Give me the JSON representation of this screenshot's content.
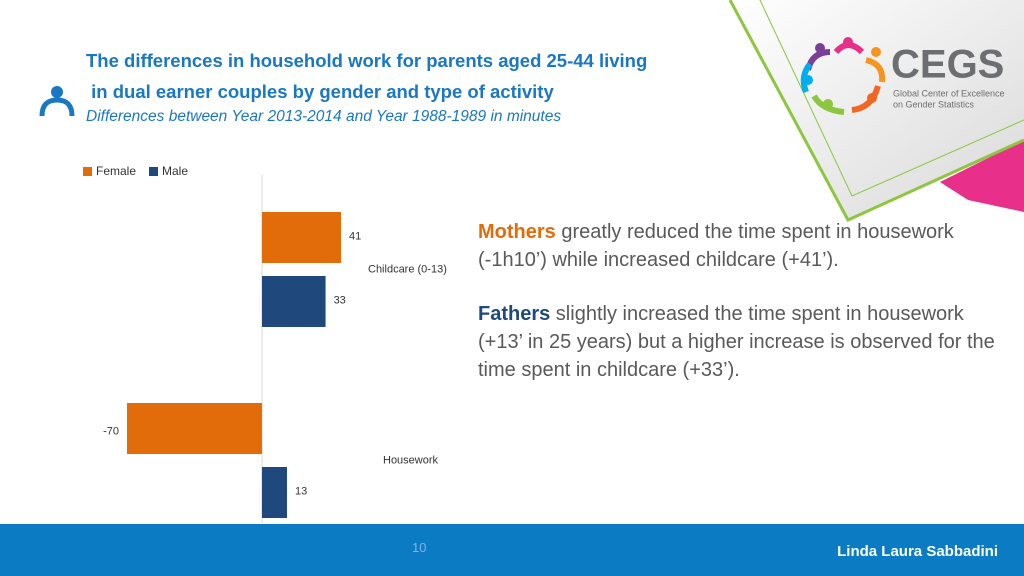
{
  "header": {
    "title_line1": "The differences in household work for parents aged 25-44 living",
    "title_line2": " in dual earner couples by gender and type of activity",
    "subtitle": "Differences between Year 2013-2014 and Year 1988-1989 in minutes"
  },
  "logo": {
    "name": "CEGS",
    "tagline_1": "Global Center of Excellence",
    "tagline_2": "on Gender Statistics"
  },
  "chart_data": {
    "type": "bar",
    "orientation": "horizontal",
    "categories": [
      "Childcare (0-13)",
      "Housework"
    ],
    "series": [
      {
        "name": "Female",
        "color": "#e36c0a",
        "values": [
          41,
          -70
        ]
      },
      {
        "name": "Male",
        "color": "#1f497d",
        "values": [
          33,
          13
        ]
      }
    ],
    "legend": "top-left"
  },
  "notes": [
    {
      "lead": "Mothers",
      "text": " greatly reduced the time spent in housework  (-1h10’) while increased childcare (+41’)."
    },
    {
      "lead": "Fathers",
      "text": " slightly increased the time spent in housework  (+13’  in 25 years) but a higher increase is observed for the time spent in childcare (+33’)."
    }
  ],
  "footer": {
    "page": "10",
    "author": "Linda Laura Sabbadini"
  }
}
